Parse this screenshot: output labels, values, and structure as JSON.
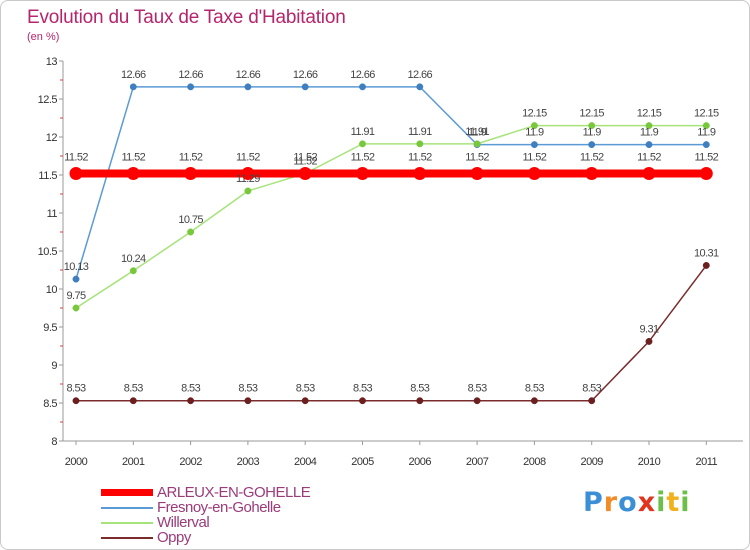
{
  "chart_data": {
    "type": "line",
    "title": "Evolution du Taux de Taxe d'Habitation",
    "subtitle": "(en %)",
    "xlabel": "",
    "ylabel": "",
    "x": [
      "2000",
      "2001",
      "2002",
      "2003",
      "2004",
      "2005",
      "2006",
      "2007",
      "2008",
      "2009",
      "2010",
      "2011"
    ],
    "ylim": [
      8,
      13
    ],
    "yticks": [
      "8",
      "8.5",
      "9",
      "9.5",
      "10",
      "10.5",
      "11",
      "11.5",
      "12",
      "12.5",
      "13"
    ],
    "legend_position": "bottom-left",
    "series": [
      {
        "name": "ARLEUX-EN-GOHELLE",
        "color": "#ff0000",
        "emphasis": true,
        "values": [
          11.52,
          11.52,
          11.52,
          11.52,
          11.52,
          11.52,
          11.52,
          11.52,
          11.52,
          11.52,
          11.52,
          11.52
        ],
        "labels": [
          "11.52",
          "11.52",
          "11.52",
          "11.52",
          "11.52",
          "11.52",
          "11.52",
          "11.52",
          "11.52",
          "11.52",
          "11.52",
          "11.52"
        ]
      },
      {
        "name": "Fresnoy-en-Gohelle",
        "color": "#5b9bd5",
        "marker_color": "#3f7fbf",
        "emphasis": false,
        "values": [
          10.13,
          12.66,
          12.66,
          12.66,
          12.66,
          12.66,
          12.66,
          11.9,
          11.9,
          11.9,
          11.9,
          11.9
        ],
        "labels": [
          "10.13",
          "12.66",
          "12.66",
          "12.66",
          "12.66",
          "12.66",
          "12.66",
          "11.9",
          "11.9",
          "11.9",
          "11.9",
          "11.9"
        ]
      },
      {
        "name": "Willerval",
        "color": "#a6e37a",
        "marker_color": "#78c83c",
        "emphasis": false,
        "values": [
          9.75,
          10.24,
          10.75,
          11.29,
          11.52,
          11.91,
          11.91,
          11.91,
          12.15,
          12.15,
          12.15,
          12.15
        ],
        "labels": [
          "9.75",
          "10.24",
          "10.75",
          "11.29",
          "11.52",
          "11.91",
          "11.91",
          "11.91",
          "12.15",
          "12.15",
          "12.15",
          "12.15"
        ]
      },
      {
        "name": "Oppy",
        "color": "#7a2b2b",
        "marker_color": "#6b1f1f",
        "emphasis": false,
        "values": [
          8.53,
          8.53,
          8.53,
          8.53,
          8.53,
          8.53,
          8.53,
          8.53,
          8.53,
          8.53,
          9.31,
          10.31
        ],
        "labels": [
          "8.53",
          "8.53",
          "8.53",
          "8.53",
          "8.53",
          "8.53",
          "8.53",
          "8.53",
          "8.53",
          "8.53",
          "9.31",
          "10.31"
        ]
      }
    ]
  },
  "logo": {
    "letters": [
      "P",
      "r",
      "o",
      "x",
      "i",
      "t",
      "i"
    ],
    "colors": [
      "#3a8fd6",
      "#f28c28",
      "#3a8fd6",
      "#e0341f",
      "#6cc04a",
      "#f2b21c",
      "#6cc04a"
    ]
  },
  "colors": {
    "title": "#b5256b",
    "axis": "#999999",
    "tick_label": "#333333",
    "data_label": "#444444"
  }
}
